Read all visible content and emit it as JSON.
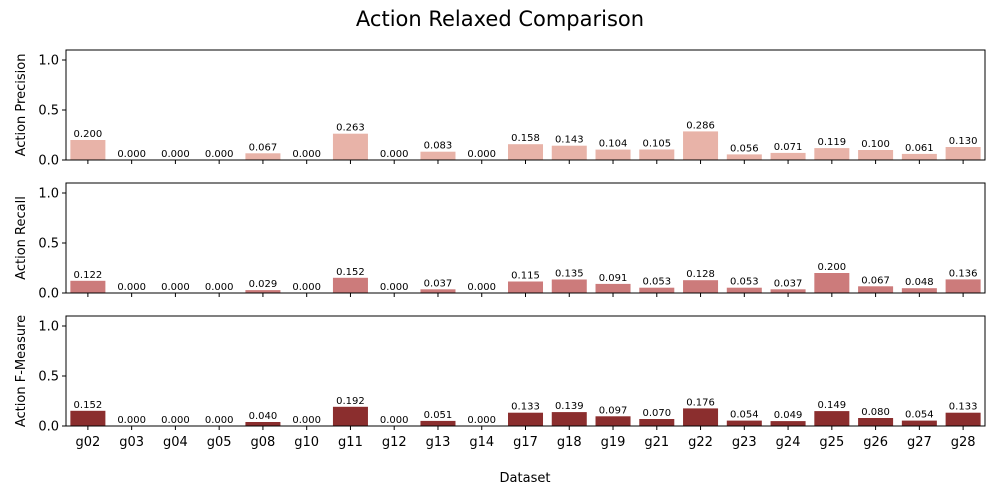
{
  "chart_data": {
    "type": "bar",
    "title": "Action Relaxed Comparison",
    "xlabel": "Dataset",
    "categories": [
      "g02",
      "g03",
      "g04",
      "g05",
      "g08",
      "g10",
      "g11",
      "g12",
      "g13",
      "g14",
      "g17",
      "g18",
      "g19",
      "g21",
      "g22",
      "g23",
      "g24",
      "g25",
      "g26",
      "g27",
      "g28"
    ],
    "ylim": [
      0,
      1.1
    ],
    "yticks": [
      "0.0",
      "0.5",
      "1.0"
    ],
    "grid": false,
    "series": [
      {
        "ylabel": "Action Precision",
        "color": "#e8b3a8",
        "values": [
          0.2,
          0.0,
          0.0,
          0.0,
          0.067,
          0.0,
          0.263,
          0.0,
          0.083,
          0.0,
          0.158,
          0.143,
          0.104,
          0.105,
          0.286,
          0.056,
          0.071,
          0.119,
          0.1,
          0.061,
          0.13
        ],
        "labels": [
          "0.200",
          "0.000",
          "0.000",
          "0.000",
          "0.067",
          "0.000",
          "0.263",
          "0.000",
          "0.083",
          "0.000",
          "0.158",
          "0.143",
          "0.104",
          "0.105",
          "0.286",
          "0.056",
          "0.071",
          "0.119",
          "0.100",
          "0.061",
          "0.130"
        ]
      },
      {
        "ylabel": "Action Recall",
        "color": "#cc7b7b",
        "values": [
          0.122,
          0.0,
          0.0,
          0.0,
          0.029,
          0.0,
          0.152,
          0.0,
          0.037,
          0.0,
          0.115,
          0.135,
          0.091,
          0.053,
          0.128,
          0.053,
          0.037,
          0.2,
          0.067,
          0.048,
          0.136
        ],
        "labels": [
          "0.122",
          "0.000",
          "0.000",
          "0.000",
          "0.029",
          "0.000",
          "0.152",
          "0.000",
          "0.037",
          "0.000",
          "0.115",
          "0.135",
          "0.091",
          "0.053",
          "0.128",
          "0.053",
          "0.037",
          "0.200",
          "0.067",
          "0.048",
          "0.136"
        ]
      },
      {
        "ylabel": "Action F-Measure",
        "color": "#8b2e2e",
        "values": [
          0.152,
          0.0,
          0.0,
          0.0,
          0.04,
          0.0,
          0.192,
          0.0,
          0.051,
          0.0,
          0.133,
          0.139,
          0.097,
          0.07,
          0.176,
          0.054,
          0.049,
          0.149,
          0.08,
          0.054,
          0.133
        ],
        "labels": [
          "0.152",
          "0.000",
          "0.000",
          "0.000",
          "0.040",
          "0.000",
          "0.192",
          "0.000",
          "0.051",
          "0.000",
          "0.133",
          "0.139",
          "0.097",
          "0.070",
          "0.176",
          "0.054",
          "0.049",
          "0.149",
          "0.080",
          "0.054",
          "0.133"
        ]
      }
    ]
  }
}
